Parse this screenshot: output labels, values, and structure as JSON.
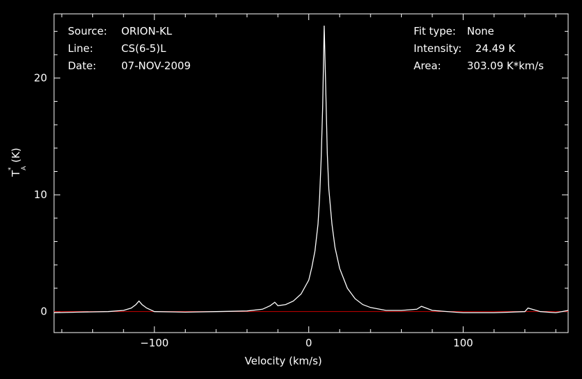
{
  "header": {
    "left": [
      {
        "key": "Source:",
        "value": "ORION-KL"
      },
      {
        "key": "Line:",
        "value": "CS(6-5)L"
      },
      {
        "key": "Date:",
        "value": "07-NOV-2009"
      }
    ],
    "right": [
      {
        "key": "Fit type:",
        "value": "None"
      },
      {
        "key": "Intensity:",
        "value": "24.49 K"
      },
      {
        "key": "Area:",
        "value": "303.09 K*km/s"
      }
    ]
  },
  "colors": {
    "background": "#000000",
    "axes": "#ffffff",
    "spectrum": "#ffffff",
    "baseline": "#cc0000"
  },
  "chart_data": {
    "type": "line",
    "xlabel": "Velocity (km/s)",
    "ylabel_main": "T",
    "ylabel_sup": "*",
    "ylabel_sub": "A",
    "ylabel_unit": "(K)",
    "xlim": [
      -165,
      168
    ],
    "ylim": [
      -1.8,
      25.5
    ],
    "xticks": [
      -100,
      0,
      100
    ],
    "xtick_labels": [
      "−100",
      "0",
      "100"
    ],
    "yticks": [
      0,
      10,
      20
    ],
    "ytick_labels": [
      "0",
      "10",
      "20"
    ],
    "baseline_y": 0,
    "series": [
      {
        "x": [
          -165,
          -150,
          -130,
          -120,
          -115,
          -112,
          -110,
          -108,
          -105,
          -100,
          -80,
          -60,
          -40,
          -30,
          -25,
          -22,
          -20,
          -15,
          -10,
          -5,
          0,
          2,
          4,
          6,
          7,
          8,
          9,
          10,
          11,
          12,
          13,
          15,
          17,
          20,
          25,
          30,
          35,
          40,
          50,
          60,
          70,
          73,
          76,
          80,
          100,
          120,
          140,
          142,
          150,
          160,
          168
        ],
        "y": [
          -0.1,
          -0.05,
          0.0,
          0.1,
          0.3,
          0.6,
          0.9,
          0.6,
          0.3,
          0.0,
          -0.05,
          0.0,
          0.05,
          0.2,
          0.5,
          0.8,
          0.5,
          0.6,
          0.9,
          1.5,
          2.7,
          3.8,
          5.2,
          7.5,
          9.8,
          13.0,
          17.5,
          24.49,
          19.0,
          13.5,
          10.5,
          7.5,
          5.5,
          3.7,
          2.0,
          1.1,
          0.6,
          0.35,
          0.1,
          0.1,
          0.2,
          0.45,
          0.3,
          0.1,
          -0.1,
          -0.1,
          0.0,
          0.3,
          0.0,
          -0.1,
          0.1
        ]
      }
    ]
  }
}
